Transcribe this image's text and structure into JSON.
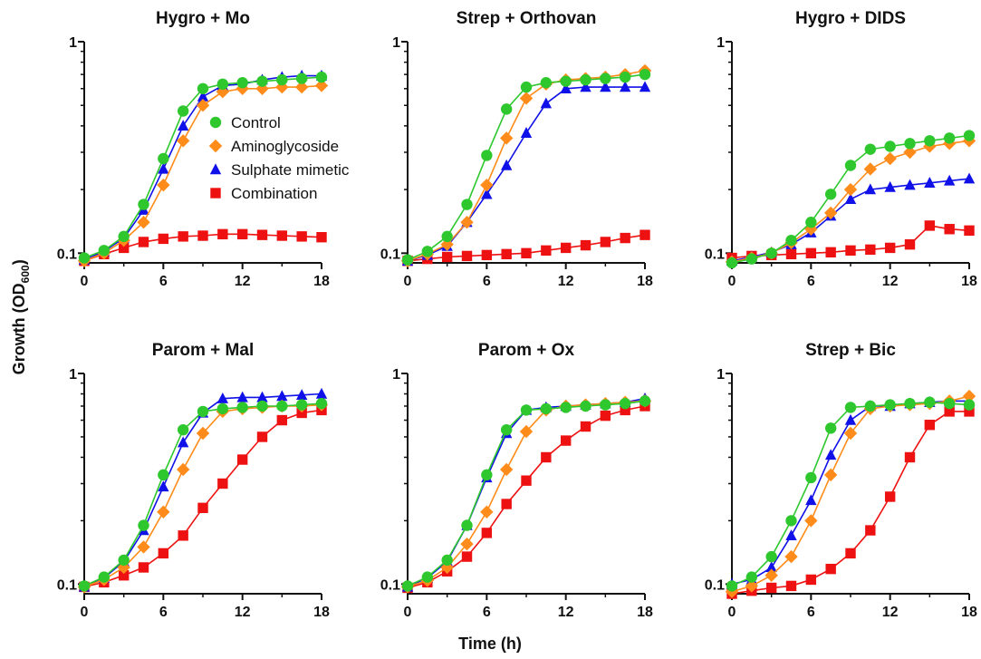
{
  "figure": {
    "y_label_main": "Growth (OD",
    "y_label_sub": "600",
    "y_label_close": ")",
    "x_label": "Time (h)"
  },
  "legend": [
    {
      "name": "Control",
      "marker": "circle",
      "color": "#2ec82e"
    },
    {
      "name": "Aminoglycoside",
      "marker": "diamond",
      "color": "#ff8c1a"
    },
    {
      "name": "Sulphate mimetic",
      "marker": "triangle",
      "color": "#1010e8"
    },
    {
      "name": "Combination",
      "marker": "square",
      "color": "#ee1111"
    }
  ],
  "chart_data": [
    {
      "type": "line",
      "title": "Hygro + Mo",
      "yscale": "log",
      "ylim": [
        0.09,
        1
      ],
      "xlim": [
        0,
        18
      ],
      "xticks": [
        "0",
        "6",
        "12",
        "18"
      ],
      "yticks": [
        "0.1",
        "1"
      ],
      "x": [
        0,
        1.5,
        3,
        4.5,
        6,
        7.5,
        9,
        10.5,
        12,
        13.5,
        15,
        16.5,
        18
      ],
      "series": [
        {
          "name": "Control",
          "values": [
            0.095,
            0.103,
            0.12,
            0.17,
            0.28,
            0.47,
            0.6,
            0.63,
            0.64,
            0.65,
            0.66,
            0.67,
            0.68
          ]
        },
        {
          "name": "Aminoglycoside",
          "values": [
            0.092,
            0.1,
            0.115,
            0.14,
            0.21,
            0.34,
            0.5,
            0.58,
            0.6,
            0.6,
            0.61,
            0.61,
            0.62
          ]
        },
        {
          "name": "Sulphate mimetic",
          "values": [
            0.093,
            0.102,
            0.118,
            0.16,
            0.25,
            0.4,
            0.55,
            0.62,
            0.63,
            0.66,
            0.68,
            0.69,
            0.69
          ]
        },
        {
          "name": "Combination",
          "values": [
            0.092,
            0.099,
            0.106,
            0.113,
            0.117,
            0.12,
            0.121,
            0.123,
            0.123,
            0.122,
            0.121,
            0.12,
            0.119
          ]
        }
      ]
    },
    {
      "type": "line",
      "title": "Strep + Orthovan",
      "yscale": "log",
      "ylim": [
        0.09,
        1
      ],
      "xlim": [
        0,
        18
      ],
      "xticks": [
        "0",
        "6",
        "12",
        "18"
      ],
      "yticks": [
        "0.1",
        "1"
      ],
      "x": [
        0,
        1.5,
        3,
        4.5,
        6,
        7.5,
        9,
        10.5,
        12,
        13.5,
        15,
        16.5,
        18
      ],
      "series": [
        {
          "name": "Control",
          "values": [
            0.093,
            0.102,
            0.12,
            0.17,
            0.29,
            0.48,
            0.61,
            0.64,
            0.65,
            0.66,
            0.67,
            0.68,
            0.7
          ]
        },
        {
          "name": "Aminoglycoside",
          "values": [
            0.092,
            0.099,
            0.11,
            0.14,
            0.21,
            0.35,
            0.54,
            0.63,
            0.66,
            0.67,
            0.68,
            0.7,
            0.73
          ]
        },
        {
          "name": "Sulphate mimetic",
          "values": [
            0.092,
            0.098,
            0.108,
            0.14,
            0.19,
            0.26,
            0.37,
            0.51,
            0.6,
            0.61,
            0.61,
            0.61,
            0.61
          ]
        },
        {
          "name": "Combination",
          "values": [
            0.092,
            0.094,
            0.096,
            0.097,
            0.098,
            0.099,
            0.1,
            0.103,
            0.106,
            0.109,
            0.113,
            0.118,
            0.122
          ]
        }
      ]
    },
    {
      "type": "line",
      "title": "Hygro + DIDS",
      "yscale": "log",
      "ylim": [
        0.09,
        1
      ],
      "xlim": [
        0,
        18
      ],
      "xticks": [
        "0",
        "6",
        "12",
        "18"
      ],
      "yticks": [
        "0.1",
        "1"
      ],
      "x": [
        0,
        1.5,
        3,
        4.5,
        6,
        7.5,
        9,
        10.5,
        12,
        13.5,
        15,
        16.5,
        18
      ],
      "series": [
        {
          "name": "Control",
          "values": [
            0.09,
            0.094,
            0.1,
            0.115,
            0.14,
            0.19,
            0.26,
            0.31,
            0.32,
            0.33,
            0.34,
            0.35,
            0.36
          ]
        },
        {
          "name": "Aminoglycoside",
          "values": [
            0.091,
            0.095,
            0.1,
            0.112,
            0.13,
            0.155,
            0.2,
            0.25,
            0.28,
            0.3,
            0.32,
            0.33,
            0.34
          ]
        },
        {
          "name": "Sulphate mimetic",
          "values": [
            0.092,
            0.096,
            0.101,
            0.11,
            0.125,
            0.15,
            0.18,
            0.2,
            0.205,
            0.21,
            0.215,
            0.22,
            0.225
          ]
        },
        {
          "name": "Combination",
          "values": [
            0.095,
            0.097,
            0.098,
            0.099,
            0.1,
            0.101,
            0.103,
            0.104,
            0.106,
            0.11,
            0.135,
            0.13,
            0.128
          ]
        }
      ]
    },
    {
      "type": "line",
      "title": "Parom + Mal",
      "yscale": "log",
      "ylim": [
        0.09,
        1
      ],
      "xlim": [
        0,
        18
      ],
      "xticks": [
        "0",
        "6",
        "12",
        "18"
      ],
      "yticks": [
        "0.1",
        "1"
      ],
      "x": [
        0,
        1.5,
        3,
        4.5,
        6,
        7.5,
        9,
        10.5,
        12,
        13.5,
        15,
        16.5,
        18
      ],
      "series": [
        {
          "name": "Control",
          "values": [
            0.098,
            0.108,
            0.13,
            0.19,
            0.33,
            0.54,
            0.66,
            0.68,
            0.69,
            0.7,
            0.7,
            0.71,
            0.72
          ]
        },
        {
          "name": "Aminoglycoside",
          "values": [
            0.097,
            0.105,
            0.12,
            0.15,
            0.22,
            0.35,
            0.52,
            0.66,
            0.68,
            0.69,
            0.7,
            0.7,
            0.71
          ]
        },
        {
          "name": "Sulphate mimetic",
          "values": [
            0.097,
            0.107,
            0.128,
            0.18,
            0.29,
            0.47,
            0.65,
            0.76,
            0.77,
            0.77,
            0.78,
            0.79,
            0.8
          ]
        },
        {
          "name": "Combination",
          "values": [
            0.097,
            0.102,
            0.11,
            0.12,
            0.14,
            0.17,
            0.23,
            0.3,
            0.39,
            0.5,
            0.6,
            0.65,
            0.67
          ]
        }
      ]
    },
    {
      "type": "line",
      "title": "Parom + Ox",
      "yscale": "log",
      "ylim": [
        0.09,
        1
      ],
      "xlim": [
        0,
        18
      ],
      "xticks": [
        "0",
        "6",
        "12",
        "18"
      ],
      "yticks": [
        "0.1",
        "1"
      ],
      "x": [
        0,
        1.5,
        3,
        4.5,
        6,
        7.5,
        9,
        10.5,
        12,
        13.5,
        15,
        16.5,
        18
      ],
      "series": [
        {
          "name": "Control",
          "values": [
            0.098,
            0.108,
            0.13,
            0.19,
            0.33,
            0.54,
            0.67,
            0.68,
            0.69,
            0.7,
            0.71,
            0.72,
            0.74
          ]
        },
        {
          "name": "Aminoglycoside",
          "values": [
            0.097,
            0.104,
            0.12,
            0.155,
            0.22,
            0.35,
            0.53,
            0.67,
            0.7,
            0.71,
            0.72,
            0.73,
            0.74
          ]
        },
        {
          "name": "Sulphate mimetic",
          "values": [
            0.097,
            0.107,
            0.128,
            0.19,
            0.32,
            0.52,
            0.67,
            0.69,
            0.7,
            0.71,
            0.72,
            0.73,
            0.76
          ]
        },
        {
          "name": "Combination",
          "values": [
            0.096,
            0.102,
            0.115,
            0.135,
            0.175,
            0.24,
            0.31,
            0.4,
            0.48,
            0.56,
            0.63,
            0.67,
            0.7
          ]
        }
      ]
    },
    {
      "type": "line",
      "title": "Strep + Bic",
      "yscale": "log",
      "ylim": [
        0.09,
        1
      ],
      "xlim": [
        0,
        18
      ],
      "xticks": [
        "0",
        "6",
        "12",
        "18"
      ],
      "yticks": [
        "0.1",
        "1"
      ],
      "x": [
        0,
        1.5,
        3,
        4.5,
        6,
        7.5,
        9,
        10.5,
        12,
        13.5,
        15,
        16.5,
        18
      ],
      "series": [
        {
          "name": "Control",
          "values": [
            0.098,
            0.108,
            0.135,
            0.2,
            0.32,
            0.55,
            0.69,
            0.7,
            0.71,
            0.72,
            0.73,
            0.72,
            0.71
          ]
        },
        {
          "name": "Aminoglycoside",
          "values": [
            0.092,
            0.098,
            0.11,
            0.135,
            0.2,
            0.33,
            0.52,
            0.68,
            0.7,
            0.71,
            0.72,
            0.74,
            0.78
          ]
        },
        {
          "name": "Sulphate mimetic",
          "values": [
            0.1,
            0.105,
            0.12,
            0.17,
            0.25,
            0.41,
            0.6,
            0.7,
            0.7,
            0.72,
            0.73,
            0.74,
            0.74
          ]
        },
        {
          "name": "Combination",
          "values": [
            0.09,
            0.093,
            0.096,
            0.098,
            0.105,
            0.118,
            0.14,
            0.18,
            0.26,
            0.4,
            0.57,
            0.66,
            0.66
          ]
        }
      ]
    }
  ]
}
